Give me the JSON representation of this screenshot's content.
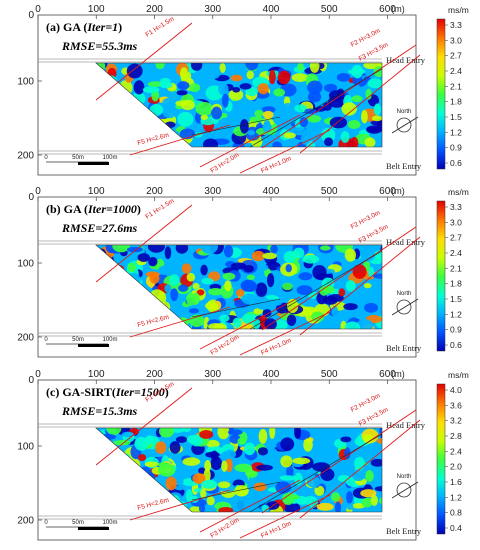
{
  "axis": {
    "x_ticks": [
      "0",
      "100",
      "200",
      "300",
      "400",
      "500",
      "600"
    ],
    "y_ticks": [
      "100",
      "200"
    ],
    "x_unit": "(m)"
  },
  "labels": {
    "head_entry": "Head Entry",
    "belt_entry": "Belt Entry",
    "north": "North",
    "scale": [
      "0",
      "50m",
      "100m"
    ],
    "colorbar_unit": "ms/m"
  },
  "faults": {
    "F1": "F1 H=1.5m",
    "F2": "F2 H=3.0m",
    "F3a": "F3 H=3.5m",
    "F3b": "F3 H=2.0m",
    "F4": "F4 H=1.0m",
    "F5": "F5 H=2.6m"
  },
  "colors": {
    "scale": [
      "#0000b4",
      "#0050ff",
      "#00b4ff",
      "#00ffd2",
      "#3cff3c",
      "#c8ff00",
      "#ffdc00",
      "#ff7800",
      "#e60000"
    ]
  },
  "panels": [
    {
      "id": "a",
      "title_pre": "(a) GA (",
      "title_it": "Iter=1",
      "title_post": ")",
      "rmse": "RMSE=55.3ms",
      "colorbar_ticks": [
        "3.3",
        "3.0",
        "2.7",
        "2.4",
        "2.1",
        "1.8",
        "1.5",
        "1.2",
        "0.9",
        "0.6"
      ],
      "seed": 7
    },
    {
      "id": "b",
      "title_pre": "(b) GA (",
      "title_it": "Iter=1000",
      "title_post": ")",
      "rmse": "RMSE=27.6ms",
      "colorbar_ticks": [
        "3.3",
        "3.0",
        "2.7",
        "2.4",
        "2.1",
        "1.8",
        "1.5",
        "1.2",
        "0.9",
        "0.6"
      ],
      "seed": 31
    },
    {
      "id": "c",
      "title_pre": "(c) GA-SIRT(",
      "title_it": "Iter=1500",
      "title_post": ")",
      "rmse": "RMSE=15.3ms",
      "colorbar_ticks": [
        "4.0",
        "3.6",
        "3.2",
        "2.8",
        "2.4",
        "2.0",
        "1.6",
        "1.2",
        "0.8",
        "0.4"
      ],
      "seed": 57
    }
  ]
}
